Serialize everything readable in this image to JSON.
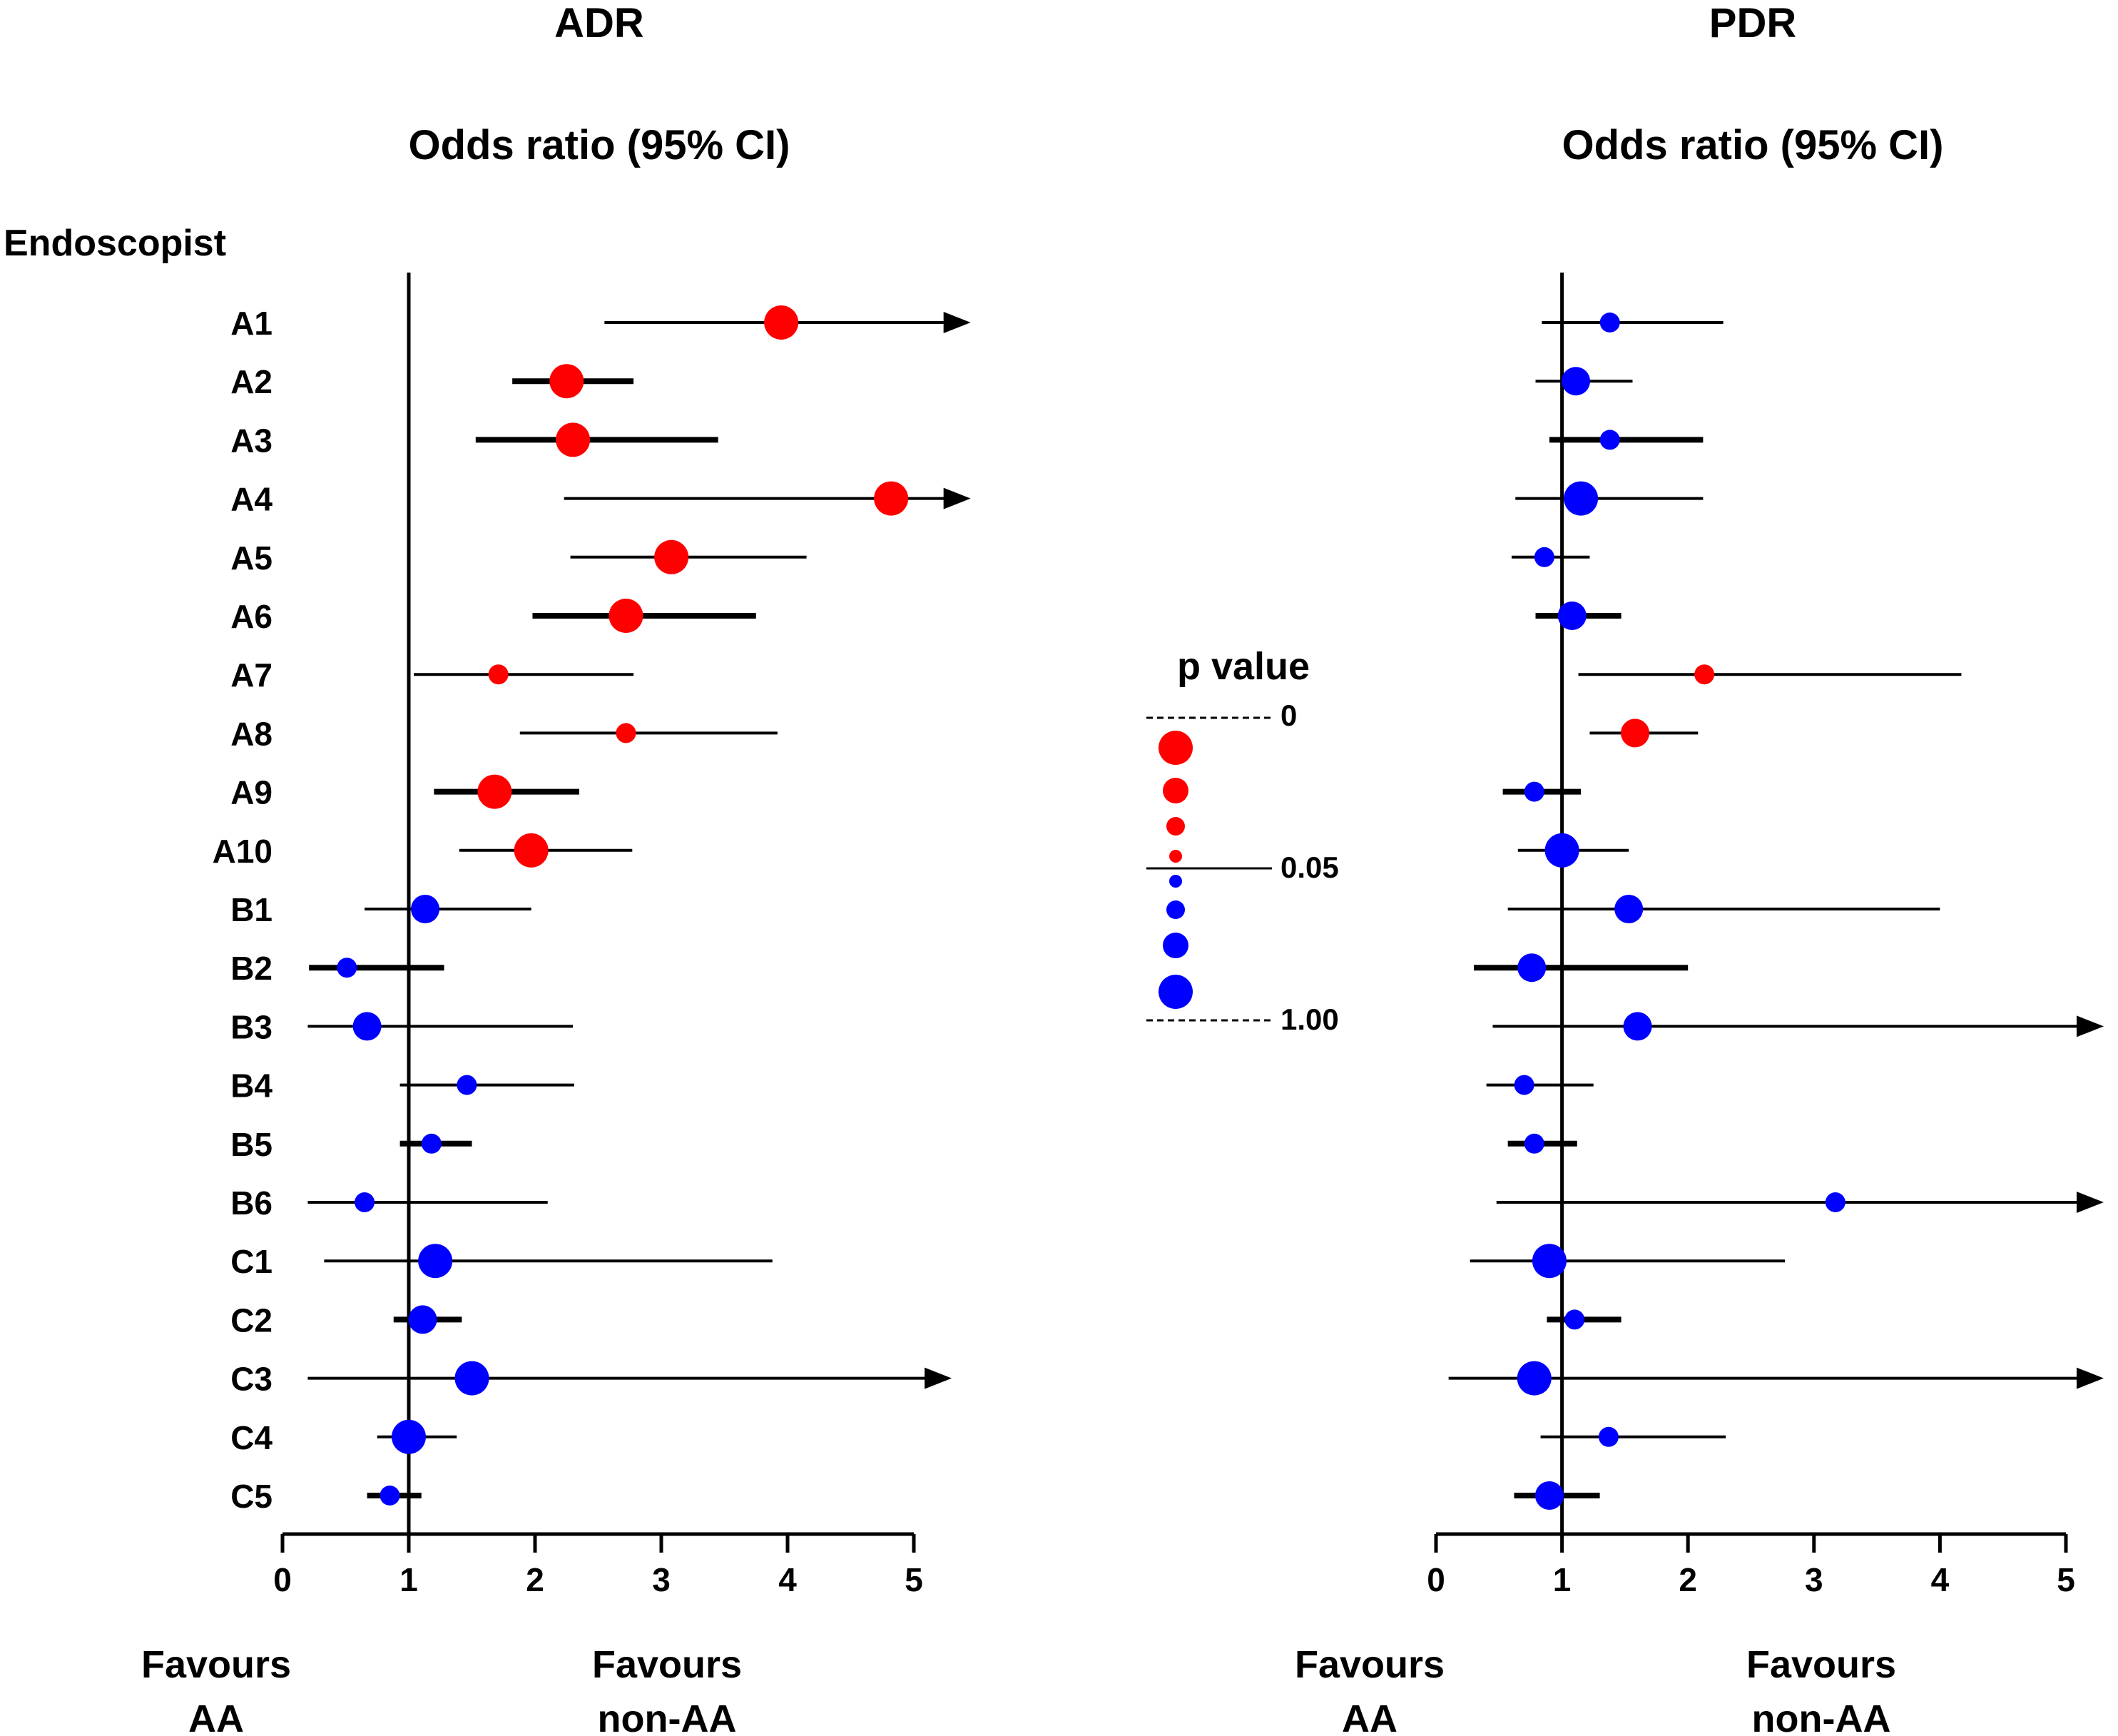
{
  "chart_data": {
    "type": "forest",
    "y_header": "Endoscopist",
    "categories": [
      "A1",
      "A2",
      "A3",
      "A4",
      "A5",
      "A6",
      "A7",
      "A8",
      "A9",
      "A10",
      "B1",
      "B2",
      "B3",
      "B4",
      "B5",
      "B6",
      "C1",
      "C2",
      "C3",
      "C4",
      "C5"
    ],
    "panels": [
      {
        "title": "ADR",
        "xlabel": "Odds ratio (95% CI)",
        "xlim": [
          0,
          5
        ],
        "xticks": [
          "0",
          "1",
          "2",
          "3",
          "4",
          "5"
        ],
        "reference": 1,
        "favours_left": [
          "Favours",
          "AA"
        ],
        "favours_right": [
          "Favours",
          "non-AA"
        ],
        "rows": [
          {
            "or": 3.95,
            "lo": 2.55,
            "hi": 5.45,
            "arrow": true,
            "sig": true,
            "size": 3,
            "thick": false
          },
          {
            "or": 2.25,
            "lo": 1.82,
            "hi": 2.78,
            "arrow": false,
            "sig": true,
            "size": 3,
            "thick": true
          },
          {
            "or": 2.3,
            "lo": 1.53,
            "hi": 3.45,
            "arrow": false,
            "sig": true,
            "size": 3,
            "thick": true
          },
          {
            "or": 4.82,
            "lo": 2.23,
            "hi": 5.45,
            "arrow": true,
            "sig": true,
            "size": 3,
            "thick": false
          },
          {
            "or": 3.08,
            "lo": 2.28,
            "hi": 4.15,
            "arrow": false,
            "sig": true,
            "size": 3,
            "thick": false
          },
          {
            "or": 2.72,
            "lo": 1.98,
            "hi": 3.75,
            "arrow": false,
            "sig": true,
            "size": 3,
            "thick": true
          },
          {
            "or": 1.71,
            "lo": 1.04,
            "hi": 2.78,
            "arrow": false,
            "sig": true,
            "size": 1,
            "thick": false
          },
          {
            "or": 2.72,
            "lo": 1.88,
            "hi": 3.92,
            "arrow": false,
            "sig": true,
            "size": 1,
            "thick": false
          },
          {
            "or": 1.68,
            "lo": 1.2,
            "hi": 2.35,
            "arrow": false,
            "sig": true,
            "size": 3,
            "thick": true
          },
          {
            "or": 1.97,
            "lo": 1.4,
            "hi": 2.77,
            "arrow": false,
            "sig": true,
            "size": 3,
            "thick": false
          },
          {
            "or": 1.13,
            "lo": 0.65,
            "hi": 1.97,
            "arrow": false,
            "sig": false,
            "size": 2,
            "thick": false
          },
          {
            "or": 0.51,
            "lo": 0.21,
            "hi": 1.28,
            "arrow": false,
            "sig": false,
            "size": 1,
            "thick": true
          },
          {
            "or": 0.67,
            "lo": 0.2,
            "hi": 2.3,
            "arrow": false,
            "sig": false,
            "size": 2,
            "thick": false
          },
          {
            "or": 1.46,
            "lo": 0.93,
            "hi": 2.31,
            "arrow": false,
            "sig": false,
            "size": 1,
            "thick": false
          },
          {
            "or": 1.18,
            "lo": 0.93,
            "hi": 1.5,
            "arrow": false,
            "sig": false,
            "size": 1,
            "thick": true
          },
          {
            "or": 0.65,
            "lo": 0.2,
            "hi": 2.1,
            "arrow": false,
            "sig": false,
            "size": 1,
            "thick": false
          },
          {
            "or": 1.21,
            "lo": 0.33,
            "hi": 3.88,
            "arrow": false,
            "sig": false,
            "size": 3,
            "thick": false
          },
          {
            "or": 1.11,
            "lo": 0.88,
            "hi": 1.42,
            "arrow": false,
            "sig": false,
            "size": 2,
            "thick": true
          },
          {
            "or": 1.5,
            "lo": 0.2,
            "hi": 5.3,
            "arrow": true,
            "sig": false,
            "size": 3,
            "thick": false
          },
          {
            "or": 1.0,
            "lo": 0.75,
            "hi": 1.38,
            "arrow": false,
            "sig": false,
            "size": 3,
            "thick": false
          },
          {
            "or": 0.85,
            "lo": 0.67,
            "hi": 1.1,
            "arrow": false,
            "sig": false,
            "size": 1,
            "thick": true
          }
        ]
      },
      {
        "title": "PDR",
        "xlabel": "Odds ratio (95% CI)",
        "xlim": [
          0,
          5
        ],
        "xticks": [
          "0",
          "1",
          "2",
          "3",
          "4",
          "5"
        ],
        "reference": 1,
        "favours_left": [
          "Favours",
          "AA"
        ],
        "favours_right": [
          "Favours",
          "non-AA"
        ],
        "rows": [
          {
            "or": 1.38,
            "lo": 0.84,
            "hi": 2.28,
            "arrow": false,
            "sig": false,
            "size": 1,
            "thick": false
          },
          {
            "or": 1.11,
            "lo": 0.79,
            "hi": 1.56,
            "arrow": false,
            "sig": false,
            "size": 2,
            "thick": false
          },
          {
            "or": 1.38,
            "lo": 0.9,
            "hi": 2.12,
            "arrow": false,
            "sig": false,
            "size": 1,
            "thick": true
          },
          {
            "or": 1.15,
            "lo": 0.63,
            "hi": 2.12,
            "arrow": false,
            "sig": false,
            "size": 3,
            "thick": false
          },
          {
            "or": 0.86,
            "lo": 0.6,
            "hi": 1.22,
            "arrow": false,
            "sig": false,
            "size": 1,
            "thick": false
          },
          {
            "or": 1.08,
            "lo": 0.79,
            "hi": 1.47,
            "arrow": false,
            "sig": false,
            "size": 2,
            "thick": true
          },
          {
            "or": 2.13,
            "lo": 1.13,
            "hi": 4.17,
            "arrow": false,
            "sig": true,
            "size": 1,
            "thick": false
          },
          {
            "or": 1.58,
            "lo": 1.22,
            "hi": 2.08,
            "arrow": false,
            "sig": true,
            "size": 2,
            "thick": false
          },
          {
            "or": 0.78,
            "lo": 0.53,
            "hi": 1.15,
            "arrow": false,
            "sig": false,
            "size": 1,
            "thick": true
          },
          {
            "or": 1.0,
            "lo": 0.65,
            "hi": 1.53,
            "arrow": false,
            "sig": false,
            "size": 3,
            "thick": false
          },
          {
            "or": 1.53,
            "lo": 0.57,
            "hi": 4.0,
            "arrow": false,
            "sig": false,
            "size": 2,
            "thick": false
          },
          {
            "or": 0.76,
            "lo": 0.3,
            "hi": 2.0,
            "arrow": false,
            "sig": false,
            "size": 2,
            "thick": true
          },
          {
            "or": 1.6,
            "lo": 0.45,
            "hi": 5.3,
            "arrow": true,
            "sig": false,
            "size": 2,
            "thick": false
          },
          {
            "or": 0.7,
            "lo": 0.4,
            "hi": 1.25,
            "arrow": false,
            "sig": false,
            "size": 1,
            "thick": false
          },
          {
            "or": 0.78,
            "lo": 0.57,
            "hi": 1.12,
            "arrow": false,
            "sig": false,
            "size": 1,
            "thick": true
          },
          {
            "or": 3.17,
            "lo": 0.48,
            "hi": 5.3,
            "arrow": true,
            "sig": false,
            "size": 1,
            "thick": false
          },
          {
            "or": 0.9,
            "lo": 0.27,
            "hi": 2.77,
            "arrow": false,
            "sig": false,
            "size": 3,
            "thick": false
          },
          {
            "or": 1.1,
            "lo": 0.88,
            "hi": 1.47,
            "arrow": false,
            "sig": false,
            "size": 1,
            "thick": true
          },
          {
            "or": 0.78,
            "lo": 0.1,
            "hi": 5.3,
            "arrow": true,
            "sig": false,
            "size": 3,
            "thick": false
          },
          {
            "or": 1.37,
            "lo": 0.83,
            "hi": 2.3,
            "arrow": false,
            "sig": false,
            "size": 1,
            "thick": false
          },
          {
            "or": 0.9,
            "lo": 0.62,
            "hi": 1.3,
            "arrow": false,
            "sig": false,
            "size": 2,
            "thick": true
          }
        ]
      }
    ],
    "legend": {
      "title": "p value",
      "labels": [
        "0",
        "0.05",
        "1.00"
      ],
      "sig_color": "#ff0000",
      "nonsig_color": "#0000ff",
      "significant_sizes": [
        4,
        3,
        2,
        1
      ],
      "nonsignificant_sizes": [
        1,
        2,
        3,
        4
      ]
    }
  }
}
